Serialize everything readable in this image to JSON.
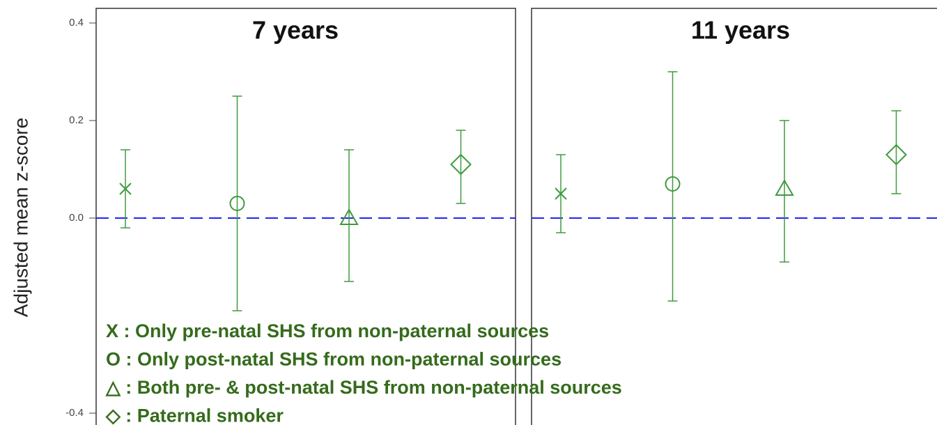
{
  "chart_data": {
    "type": "errorbar",
    "ylabel": "Adjusted mean z-score",
    "ylim": [
      -0.43,
      0.43
    ],
    "yticks": [
      0.4,
      0.2,
      {
        "value": 0,
        "label": "0.0"
      },
      -0.4
    ],
    "reference_line": 0,
    "reference_color": "#2323f5",
    "color": "#3f9a3f",
    "legend_color": "#356b1c",
    "markers": [
      "x",
      "circle",
      "triangle",
      "diamond"
    ],
    "panels": [
      {
        "title": "7 years",
        "values": [
          0.06,
          0.03,
          0.0,
          0.11
        ],
        "lower": [
          -0.02,
          -0.19,
          -0.13,
          0.03
        ],
        "upper": [
          0.14,
          0.25,
          0.14,
          0.18
        ]
      },
      {
        "title": "11 years",
        "values": [
          0.05,
          0.07,
          0.06,
          0.13
        ],
        "lower": [
          -0.03,
          -0.17,
          -0.09,
          0.05
        ],
        "upper": [
          0.13,
          0.3,
          0.2,
          0.22
        ]
      }
    ],
    "legend": [
      "X : Only pre-natal SHS from non-paternal sources",
      "O : Only post-natal SHS from non-paternal sources",
      "△ : Both pre- & post-natal SHS from non-paternal sources",
      "◇ : Paternal smoker"
    ]
  }
}
